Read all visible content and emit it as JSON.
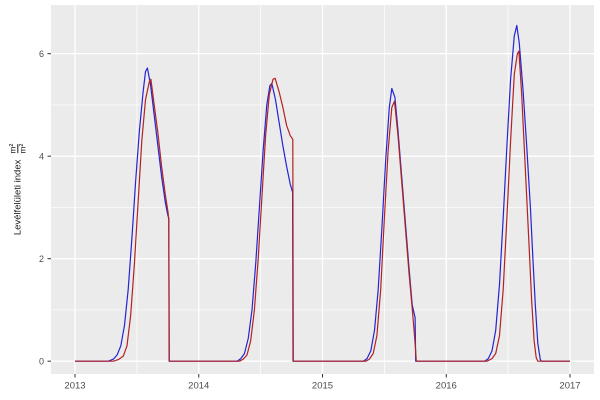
{
  "figure": {
    "background": "#FFFFFF",
    "panel_background": "#EBEBEB",
    "grid_color": "#FFFFFF",
    "tick_color": "#333333",
    "tick_label_color": "#4D4D4D",
    "axis_label_color": "#1A1A1A"
  },
  "ylabel": {
    "text": "Levélfelületi index",
    "frac_num": "m²",
    "frac_den": "m²"
  },
  "chart_data": {
    "type": "line",
    "title": "",
    "xlabel": "",
    "ylabel": "Levélfelületi index m²/m²",
    "grid": true,
    "legend": false,
    "xlim": [
      2012.806,
      2017.194
    ],
    "ylim": [
      -0.25,
      6.95
    ],
    "x_ticks": [
      2013,
      2014,
      2015,
      2016,
      2017
    ],
    "x_tick_labels": [
      "2013",
      "2014",
      "2015",
      "2016",
      "2017"
    ],
    "x_minor_ticks": [
      2013.5,
      2014.5,
      2015.5,
      2016.5
    ],
    "y_ticks": [
      0,
      2,
      4,
      6
    ],
    "y_tick_labels": [
      "0",
      "2",
      "4",
      "6"
    ],
    "y_minor_ticks": [
      1,
      3,
      5
    ],
    "series": [
      {
        "name": "blue-series",
        "color": "#2424D4",
        "points": [
          [
            2013.0,
            0
          ],
          [
            2013.27,
            0
          ],
          [
            2013.31,
            0.04
          ],
          [
            2013.34,
            0.12
          ],
          [
            2013.37,
            0.3
          ],
          [
            2013.4,
            0.7
          ],
          [
            2013.43,
            1.4
          ],
          [
            2013.46,
            2.4
          ],
          [
            2013.49,
            3.5
          ],
          [
            2013.52,
            4.5
          ],
          [
            2013.55,
            5.25
          ],
          [
            2013.57,
            5.65
          ],
          [
            2013.585,
            5.72
          ],
          [
            2013.61,
            5.4
          ],
          [
            2013.64,
            4.8
          ],
          [
            2013.67,
            4.2
          ],
          [
            2013.7,
            3.6
          ],
          [
            2013.73,
            3.1
          ],
          [
            2013.75,
            2.85
          ],
          [
            2013.758,
            2.8
          ],
          [
            2013.76,
            0
          ],
          [
            2014.31,
            0
          ],
          [
            2014.34,
            0.05
          ],
          [
            2014.37,
            0.15
          ],
          [
            2014.4,
            0.45
          ],
          [
            2014.43,
            1.0
          ],
          [
            2014.46,
            1.9
          ],
          [
            2014.49,
            3.0
          ],
          [
            2014.52,
            4.1
          ],
          [
            2014.55,
            5.0
          ],
          [
            2014.575,
            5.38
          ],
          [
            2014.59,
            5.42
          ],
          [
            2014.62,
            5.1
          ],
          [
            2014.65,
            4.65
          ],
          [
            2014.68,
            4.2
          ],
          [
            2014.71,
            3.8
          ],
          [
            2014.74,
            3.45
          ],
          [
            2014.758,
            3.3
          ],
          [
            2014.762,
            0
          ],
          [
            2015.33,
            0
          ],
          [
            2015.36,
            0.05
          ],
          [
            2015.39,
            0.2
          ],
          [
            2015.42,
            0.6
          ],
          [
            2015.45,
            1.4
          ],
          [
            2015.48,
            2.6
          ],
          [
            2015.51,
            3.9
          ],
          [
            2015.54,
            4.95
          ],
          [
            2015.56,
            5.32
          ],
          [
            2015.585,
            5.15
          ],
          [
            2015.61,
            4.5
          ],
          [
            2015.64,
            3.6
          ],
          [
            2015.67,
            2.7
          ],
          [
            2015.7,
            1.8
          ],
          [
            2015.725,
            1.1
          ],
          [
            2015.748,
            0.85
          ],
          [
            2015.753,
            0
          ],
          [
            2016.31,
            0
          ],
          [
            2016.34,
            0.05
          ],
          [
            2016.37,
            0.2
          ],
          [
            2016.4,
            0.6
          ],
          [
            2016.43,
            1.5
          ],
          [
            2016.46,
            2.8
          ],
          [
            2016.49,
            4.2
          ],
          [
            2016.52,
            5.5
          ],
          [
            2016.55,
            6.35
          ],
          [
            2016.57,
            6.55
          ],
          [
            2016.59,
            6.2
          ],
          [
            2016.62,
            5.3
          ],
          [
            2016.65,
            4.2
          ],
          [
            2016.68,
            3.0
          ],
          [
            2016.7,
            2.0
          ],
          [
            2016.72,
            1.1
          ],
          [
            2016.74,
            0.35
          ],
          [
            2016.76,
            0.03
          ],
          [
            2016.77,
            0
          ],
          [
            2017.0,
            0
          ]
        ]
      },
      {
        "name": "red-series",
        "color": "#B22222",
        "points": [
          [
            2013.0,
            0
          ],
          [
            2013.31,
            0
          ],
          [
            2013.35,
            0.03
          ],
          [
            2013.39,
            0.1
          ],
          [
            2013.42,
            0.3
          ],
          [
            2013.45,
            0.9
          ],
          [
            2013.48,
            1.9
          ],
          [
            2013.51,
            3.1
          ],
          [
            2013.54,
            4.3
          ],
          [
            2013.57,
            5.1
          ],
          [
            2013.6,
            5.45
          ],
          [
            2013.613,
            5.5
          ],
          [
            2013.64,
            5.0
          ],
          [
            2013.67,
            4.45
          ],
          [
            2013.7,
            3.8
          ],
          [
            2013.73,
            3.25
          ],
          [
            2013.752,
            2.9
          ],
          [
            2013.758,
            2.72
          ],
          [
            2013.762,
            0
          ],
          [
            2014.33,
            0
          ],
          [
            2014.36,
            0.04
          ],
          [
            2014.39,
            0.12
          ],
          [
            2014.42,
            0.4
          ],
          [
            2014.45,
            1.0
          ],
          [
            2014.48,
            2.0
          ],
          [
            2014.51,
            3.2
          ],
          [
            2014.54,
            4.4
          ],
          [
            2014.57,
            5.2
          ],
          [
            2014.6,
            5.5
          ],
          [
            2014.617,
            5.52
          ],
          [
            2014.65,
            5.25
          ],
          [
            2014.68,
            4.95
          ],
          [
            2014.71,
            4.6
          ],
          [
            2014.74,
            4.4
          ],
          [
            2014.76,
            4.33
          ],
          [
            2014.764,
            0
          ],
          [
            2015.35,
            0
          ],
          [
            2015.38,
            0.04
          ],
          [
            2015.41,
            0.15
          ],
          [
            2015.44,
            0.5
          ],
          [
            2015.47,
            1.4
          ],
          [
            2015.5,
            2.8
          ],
          [
            2015.53,
            4.1
          ],
          [
            2015.56,
            4.95
          ],
          [
            2015.582,
            5.07
          ],
          [
            2015.61,
            4.4
          ],
          [
            2015.64,
            3.5
          ],
          [
            2015.67,
            2.6
          ],
          [
            2015.7,
            1.7
          ],
          [
            2015.73,
            0.9
          ],
          [
            2015.75,
            0.3
          ],
          [
            2015.758,
            0
          ],
          [
            2016.33,
            0
          ],
          [
            2016.37,
            0.05
          ],
          [
            2016.4,
            0.15
          ],
          [
            2016.43,
            0.5
          ],
          [
            2016.46,
            1.4
          ],
          [
            2016.49,
            2.8
          ],
          [
            2016.52,
            4.3
          ],
          [
            2016.55,
            5.6
          ],
          [
            2016.575,
            6.0
          ],
          [
            2016.587,
            6.05
          ],
          [
            2016.61,
            5.2
          ],
          [
            2016.63,
            4.2
          ],
          [
            2016.65,
            3.2
          ],
          [
            2016.67,
            2.2
          ],
          [
            2016.69,
            1.2
          ],
          [
            2016.71,
            0.4
          ],
          [
            2016.727,
            0.07
          ],
          [
            2016.74,
            0
          ],
          [
            2017.0,
            0
          ]
        ]
      }
    ]
  }
}
